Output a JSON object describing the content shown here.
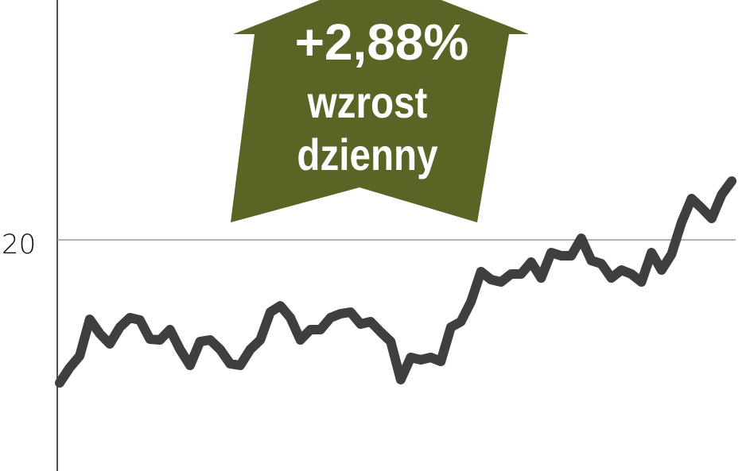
{
  "chart_data": {
    "type": "line",
    "title": "",
    "xlabel": "",
    "ylabel": "",
    "ylim": [
      17.09,
      23.02
    ],
    "grid": "horizontal line at 20",
    "yticks": [
      20
    ],
    "ytick_labels": [
      "20"
    ],
    "line_color": "#3f3f3f",
    "series": [
      {
        "values": [
          18.2,
          18.39,
          18.54,
          19.0,
          18.82,
          18.69,
          18.9,
          19.02,
          18.99,
          18.75,
          18.74,
          18.87,
          18.62,
          18.42,
          18.72,
          18.74,
          18.62,
          18.44,
          18.42,
          18.62,
          18.74,
          19.09,
          19.17,
          19.02,
          18.74,
          18.87,
          18.87,
          19.02,
          19.07,
          19.09,
          18.94,
          18.97,
          18.84,
          18.72,
          18.24,
          18.52,
          18.49,
          18.52,
          18.47,
          18.9,
          18.97,
          19.22,
          19.6,
          19.5,
          19.47,
          19.57,
          19.57,
          19.72,
          19.52,
          19.84,
          19.8,
          19.8,
          20.02,
          19.74,
          19.7,
          19.52,
          19.62,
          19.57,
          19.47,
          19.84,
          19.62,
          19.82,
          20.22,
          20.52,
          20.4,
          20.27,
          20.57,
          20.74
        ]
      }
    ],
    "annotation": {
      "shape": "up-arrow",
      "color": "#5b6325",
      "text_color": "#ffffff",
      "lines": [
        "+2,88%",
        "wzrost",
        "dzienny"
      ]
    }
  }
}
